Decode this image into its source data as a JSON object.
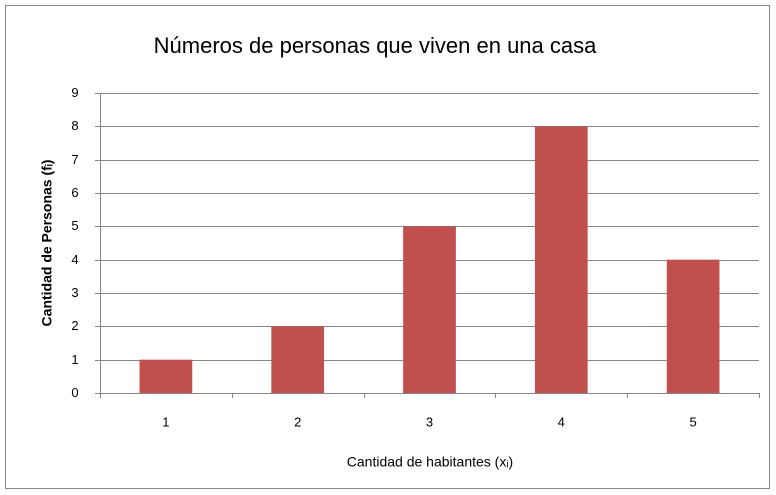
{
  "chart_data": {
    "type": "bar",
    "title": "Números de personas que viven en una casa",
    "x_label": "Cantidad de habitantes (xᵢ)",
    "y_label": "Cantidad de Personas (fᵢ)",
    "categories": [
      "1",
      "2",
      "3",
      "4",
      "5"
    ],
    "values": [
      1,
      2,
      5,
      8,
      4
    ],
    "color": "#c0504d",
    "ylim": [
      0,
      9
    ],
    "yticks": [
      0,
      1,
      2,
      3,
      4,
      5,
      6,
      7,
      8,
      9
    ],
    "grid": true
  }
}
